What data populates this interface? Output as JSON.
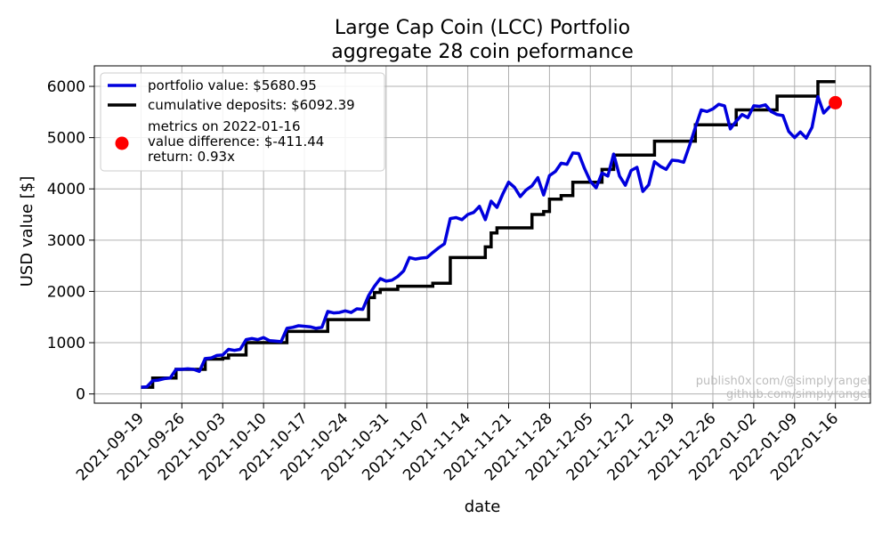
{
  "chart_data": {
    "type": "line",
    "title_line1": "Large Cap Coin (LCC) Portfolio",
    "title_line2": "aggregate 28 coin peformance",
    "xlabel": "date",
    "ylabel": "USD value [$]",
    "grid": true,
    "legend_position": "top-left",
    "x_start": "2021-09-19",
    "x_ticks": [
      "2021-09-19",
      "2021-09-26",
      "2021-10-03",
      "2021-10-10",
      "2021-10-17",
      "2021-10-24",
      "2021-10-31",
      "2021-11-07",
      "2021-11-14",
      "2021-11-21",
      "2021-11-28",
      "2021-12-05",
      "2021-12-12",
      "2021-12-19",
      "2021-12-26",
      "2022-01-02",
      "2022-01-09",
      "2022-01-16"
    ],
    "xlim": [
      "2021-09-11",
      "2022-01-22"
    ],
    "y_ticks": [
      0,
      1000,
      2000,
      3000,
      4000,
      5000,
      6000
    ],
    "ylim": [
      -180,
      6400
    ],
    "series": [
      {
        "name": "portfolio value: $5680.95",
        "color": "#0000dd",
        "points": [
          [
            "2021-09-19",
            130
          ],
          [
            "2021-09-20",
            140
          ],
          [
            "2021-09-21",
            260
          ],
          [
            "2021-09-22",
            270
          ],
          [
            "2021-09-23",
            300
          ],
          [
            "2021-09-24",
            310
          ],
          [
            "2021-09-25",
            480
          ],
          [
            "2021-09-26",
            480
          ],
          [
            "2021-09-27",
            490
          ],
          [
            "2021-09-28",
            480
          ],
          [
            "2021-09-29",
            440
          ],
          [
            "2021-09-30",
            690
          ],
          [
            "2021-10-01",
            700
          ],
          [
            "2021-10-02",
            750
          ],
          [
            "2021-10-03",
            760
          ],
          [
            "2021-10-04",
            870
          ],
          [
            "2021-10-05",
            850
          ],
          [
            "2021-10-06",
            870
          ],
          [
            "2021-10-07",
            1060
          ],
          [
            "2021-10-08",
            1080
          ],
          [
            "2021-10-09",
            1060
          ],
          [
            "2021-10-10",
            1100
          ],
          [
            "2021-10-11",
            1040
          ],
          [
            "2021-10-12",
            1030
          ],
          [
            "2021-10-13",
            1020
          ],
          [
            "2021-10-14",
            1280
          ],
          [
            "2021-10-15",
            1300
          ],
          [
            "2021-10-16",
            1330
          ],
          [
            "2021-10-17",
            1320
          ],
          [
            "2021-10-18",
            1310
          ],
          [
            "2021-10-19",
            1280
          ],
          [
            "2021-10-20",
            1300
          ],
          [
            "2021-10-21",
            1610
          ],
          [
            "2021-10-22",
            1580
          ],
          [
            "2021-10-23",
            1590
          ],
          [
            "2021-10-24",
            1620
          ],
          [
            "2021-10-25",
            1590
          ],
          [
            "2021-10-26",
            1660
          ],
          [
            "2021-10-27",
            1650
          ],
          [
            "2021-10-28",
            1920
          ],
          [
            "2021-10-29",
            2100
          ],
          [
            "2021-10-30",
            2250
          ],
          [
            "2021-10-31",
            2200
          ],
          [
            "2021-11-01",
            2220
          ],
          [
            "2021-11-02",
            2290
          ],
          [
            "2021-11-03",
            2400
          ],
          [
            "2021-11-04",
            2660
          ],
          [
            "2021-11-05",
            2630
          ],
          [
            "2021-11-06",
            2650
          ],
          [
            "2021-11-07",
            2660
          ],
          [
            "2021-11-08",
            2760
          ],
          [
            "2021-11-09",
            2850
          ],
          [
            "2021-11-10",
            2930
          ],
          [
            "2021-11-11",
            3420
          ],
          [
            "2021-11-12",
            3440
          ],
          [
            "2021-11-13",
            3400
          ],
          [
            "2021-11-14",
            3500
          ],
          [
            "2021-11-15",
            3540
          ],
          [
            "2021-11-16",
            3660
          ],
          [
            "2021-11-17",
            3400
          ],
          [
            "2021-11-18",
            3760
          ],
          [
            "2021-11-19",
            3640
          ],
          [
            "2021-11-20",
            3900
          ],
          [
            "2021-11-21",
            4130
          ],
          [
            "2021-11-22",
            4030
          ],
          [
            "2021-11-23",
            3850
          ],
          [
            "2021-11-24",
            3980
          ],
          [
            "2021-11-25",
            4060
          ],
          [
            "2021-11-26",
            4220
          ],
          [
            "2021-11-27",
            3880
          ],
          [
            "2021-11-28",
            4260
          ],
          [
            "2021-11-29",
            4340
          ],
          [
            "2021-11-30",
            4500
          ],
          [
            "2021-12-01",
            4480
          ],
          [
            "2021-12-02",
            4700
          ],
          [
            "2021-12-03",
            4690
          ],
          [
            "2021-12-04",
            4400
          ],
          [
            "2021-12-05",
            4150
          ],
          [
            "2021-12-06",
            4020
          ],
          [
            "2021-12-07",
            4310
          ],
          [
            "2021-12-08",
            4250
          ],
          [
            "2021-12-09",
            4680
          ],
          [
            "2021-12-10",
            4250
          ],
          [
            "2021-12-11",
            4070
          ],
          [
            "2021-12-12",
            4360
          ],
          [
            "2021-12-13",
            4420
          ],
          [
            "2021-12-14",
            3950
          ],
          [
            "2021-12-15",
            4080
          ],
          [
            "2021-12-16",
            4530
          ],
          [
            "2021-12-17",
            4440
          ],
          [
            "2021-12-18",
            4380
          ],
          [
            "2021-12-19",
            4560
          ],
          [
            "2021-12-20",
            4550
          ],
          [
            "2021-12-21",
            4520
          ],
          [
            "2021-12-22",
            4850
          ],
          [
            "2021-12-23",
            5200
          ],
          [
            "2021-12-24",
            5540
          ],
          [
            "2021-12-25",
            5510
          ],
          [
            "2021-12-26",
            5560
          ],
          [
            "2021-12-27",
            5650
          ],
          [
            "2021-12-28",
            5620
          ],
          [
            "2021-12-29",
            5170
          ],
          [
            "2021-12-30",
            5320
          ],
          [
            "2021-12-31",
            5450
          ],
          [
            "2022-01-01",
            5390
          ],
          [
            "2022-01-02",
            5620
          ],
          [
            "2022-01-03",
            5610
          ],
          [
            "2022-01-04",
            5640
          ],
          [
            "2022-01-05",
            5510
          ],
          [
            "2022-01-06",
            5450
          ],
          [
            "2022-01-07",
            5430
          ],
          [
            "2022-01-08",
            5120
          ],
          [
            "2022-01-09",
            5000
          ],
          [
            "2022-01-10",
            5110
          ],
          [
            "2022-01-11",
            4990
          ],
          [
            "2022-01-12",
            5200
          ],
          [
            "2022-01-13",
            5800
          ],
          [
            "2022-01-14",
            5480
          ],
          [
            "2022-01-15",
            5600
          ],
          [
            "2022-01-16",
            5680.95
          ]
        ]
      },
      {
        "name": "cumulative deposits: $6092.39",
        "color": "#000000",
        "step_points": [
          [
            "2021-09-19",
            130
          ],
          [
            "2021-09-21",
            310
          ],
          [
            "2021-09-25",
            480
          ],
          [
            "2021-09-30",
            680
          ],
          [
            "2021-10-03",
            700
          ],
          [
            "2021-10-04",
            760
          ],
          [
            "2021-10-07",
            1000
          ],
          [
            "2021-10-14",
            1220
          ],
          [
            "2021-10-21",
            1450
          ],
          [
            "2021-10-28",
            1880
          ],
          [
            "2021-10-29",
            1980
          ],
          [
            "2021-10-30",
            2040
          ],
          [
            "2021-11-02",
            2100
          ],
          [
            "2021-11-08",
            2160
          ],
          [
            "2021-11-11",
            2660
          ],
          [
            "2021-11-17",
            2870
          ],
          [
            "2021-11-18",
            3140
          ],
          [
            "2021-11-19",
            3240
          ],
          [
            "2021-11-25",
            3500
          ],
          [
            "2021-11-27",
            3560
          ],
          [
            "2021-11-28",
            3800
          ],
          [
            "2021-11-30",
            3870
          ],
          [
            "2021-12-02",
            4130
          ],
          [
            "2021-12-07",
            4380
          ],
          [
            "2021-12-09",
            4660
          ],
          [
            "2021-12-16",
            4930
          ],
          [
            "2021-12-23",
            5250
          ],
          [
            "2021-12-30",
            5540
          ],
          [
            "2022-01-06",
            5810
          ],
          [
            "2022-01-13",
            6092.39
          ],
          [
            "2022-01-16",
            6092.39
          ]
        ]
      }
    ],
    "marker": {
      "date": "2022-01-16",
      "value": 5680.95,
      "color": "#ff0000",
      "legend_lines": [
        "metrics on 2022-01-16",
        "value difference: $-411.44",
        "return: 0.93x"
      ]
    },
    "watermark": [
      "publish0x.com/@simplyrangel",
      "github.com/simplyrangel"
    ]
  }
}
